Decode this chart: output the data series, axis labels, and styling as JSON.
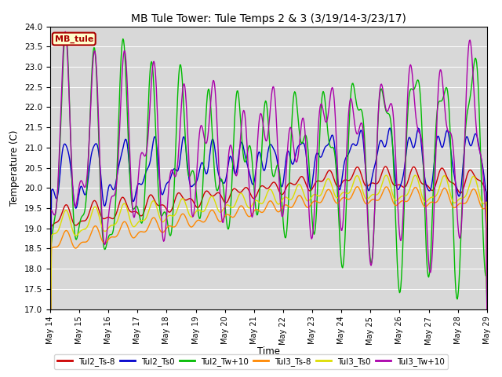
{
  "title": "MB Tule Tower: Tule Temps 2 & 3 (3/19/14-3/23/17)",
  "xlabel": "Time",
  "ylabel": "Temperature (C)",
  "ylim": [
    17.0,
    24.0
  ],
  "yticks": [
    17.0,
    17.5,
    18.0,
    18.5,
    19.0,
    19.5,
    20.0,
    20.5,
    21.0,
    21.5,
    22.0,
    22.5,
    23.0,
    23.5,
    24.0
  ],
  "bg_color": "#d8d8d8",
  "legend_label": "MB_tule",
  "line_colors": {
    "Tul2_Ts-8": "#cc0000",
    "Tul2_Ts0": "#0000cc",
    "Tul2_Tw+10": "#00bb00",
    "Tul3_Ts-8": "#ff8800",
    "Tul3_Ts0": "#dddd00",
    "Tul3_Tw+10": "#aa00aa"
  }
}
